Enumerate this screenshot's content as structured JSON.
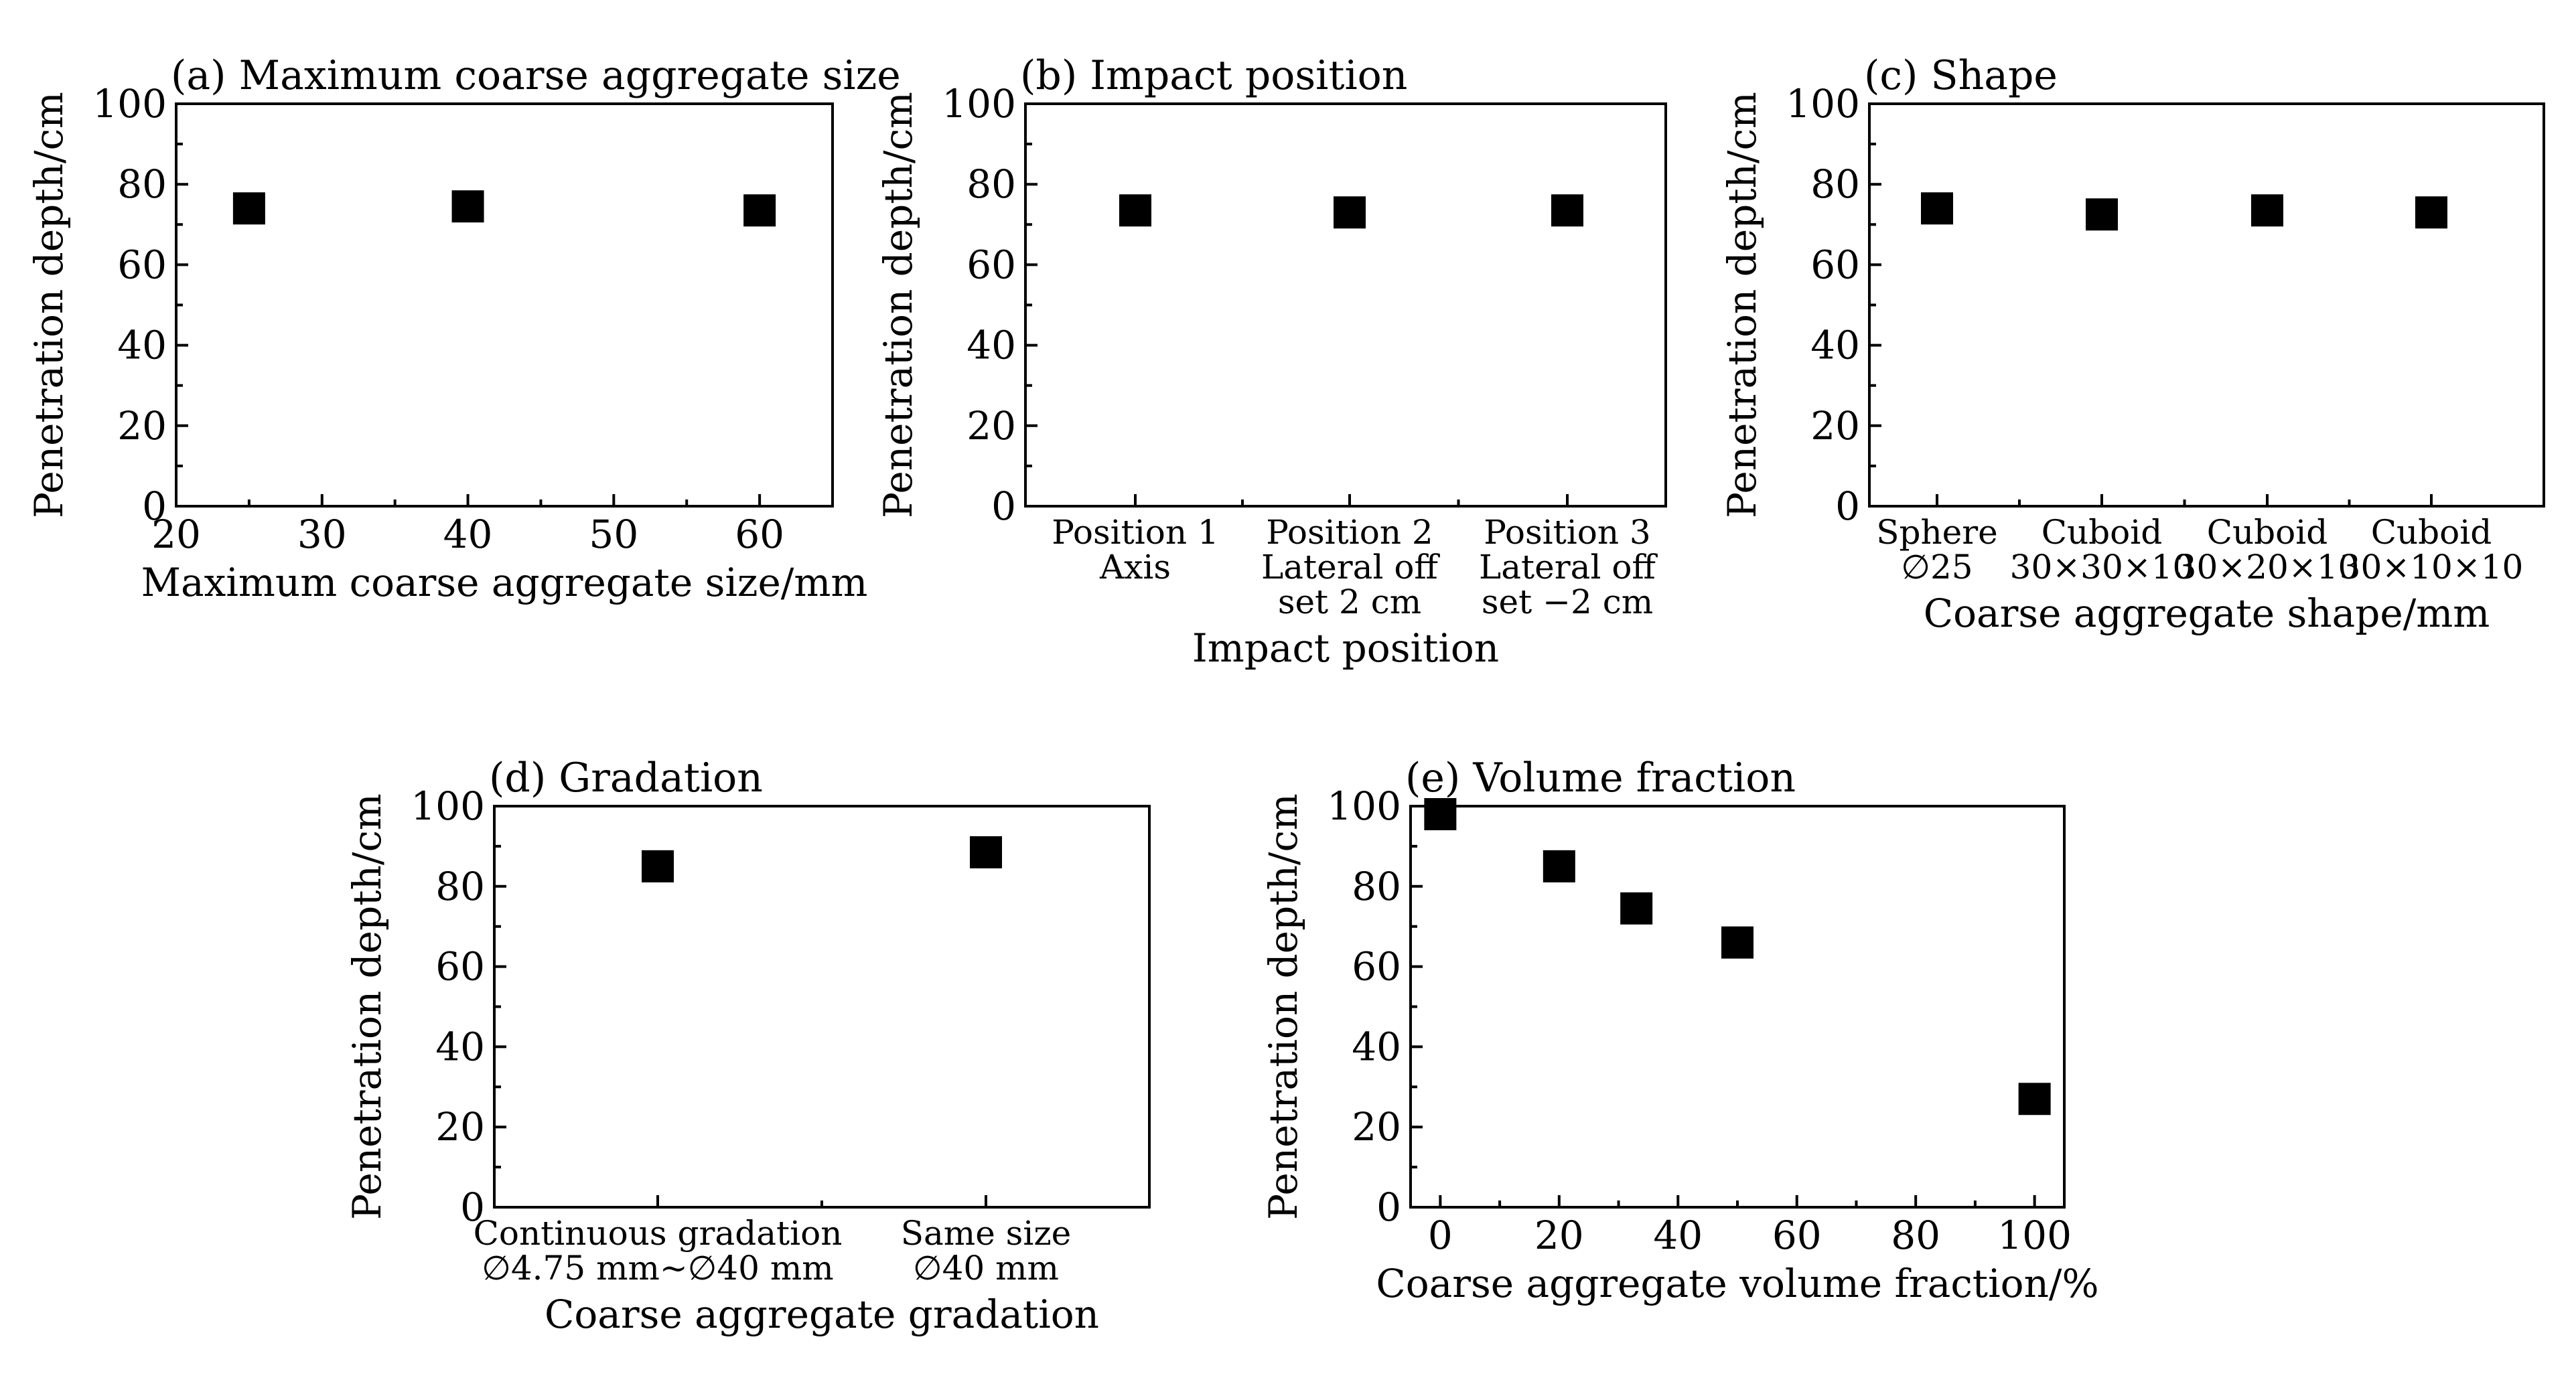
{
  "chart_data": [
    {
      "id": "a",
      "type": "scatter",
      "title": "(a) Maximum coarse aggregate size",
      "xlabel": "Maximum coarse aggregate size/mm",
      "ylabel": "Penetration depth/cm",
      "xlim": [
        20,
        65
      ],
      "ylim": [
        0,
        100
      ],
      "xticks": [
        20,
        30,
        40,
        50,
        60
      ],
      "yticks": [
        0,
        20,
        40,
        60,
        80,
        100
      ],
      "x": [
        25,
        40,
        60
      ],
      "y": [
        74,
        74.5,
        73.5
      ],
      "marker": "square",
      "color": "#000000",
      "grid": false
    },
    {
      "id": "b",
      "type": "scatter",
      "title": "(b) Impact position",
      "xlabel": "Impact position",
      "ylabel": "Penetration depth/cm",
      "ylim": [
        0,
        100
      ],
      "yticks": [
        0,
        20,
        40,
        60,
        80,
        100
      ],
      "categories": [
        [
          "Position 1",
          "Axis"
        ],
        [
          "Position 2",
          "Lateral off",
          "set 2 cm"
        ],
        [
          "Position 3",
          "Lateral off",
          "set −2 cm"
        ]
      ],
      "y": [
        73.5,
        73,
        73.5
      ],
      "marker": "square",
      "color": "#000000",
      "grid": false
    },
    {
      "id": "c",
      "type": "scatter",
      "title": "(c) Shape",
      "xlabel": "Coarse aggregate shape/mm",
      "ylabel": "Penetration depth/cm",
      "ylim": [
        0,
        100
      ],
      "yticks": [
        0,
        20,
        40,
        60,
        80,
        100
      ],
      "categories": [
        [
          "Sphere",
          "∅25"
        ],
        [
          "Cuboid",
          "30×30×10"
        ],
        [
          "Cuboid",
          "30×20×10"
        ],
        [
          "Cuboid",
          "30×10×10"
        ]
      ],
      "y": [
        74,
        72.5,
        73.5,
        73
      ],
      "marker": "square",
      "color": "#000000",
      "grid": false
    },
    {
      "id": "d",
      "type": "scatter",
      "title": "(d) Gradation",
      "xlabel": "Coarse aggregate gradation",
      "ylabel": "Penetration depth/cm",
      "ylim": [
        0,
        100
      ],
      "yticks": [
        0,
        20,
        40,
        60,
        80,
        100
      ],
      "categories": [
        [
          "Continuous gradation",
          "∅4.75 mm~∅40 mm"
        ],
        [
          "Same size",
          "∅40 mm"
        ]
      ],
      "y": [
        85,
        88.5
      ],
      "marker": "square",
      "color": "#000000",
      "grid": false
    },
    {
      "id": "e",
      "type": "scatter",
      "title": "(e) Volume fraction",
      "xlabel": "Coarse aggregate volume fraction/%",
      "ylabel": "Penetration depth/cm",
      "xlim": [
        -5,
        105
      ],
      "ylim": [
        0,
        100
      ],
      "xticks": [
        0,
        20,
        40,
        60,
        80,
        100
      ],
      "yticks": [
        0,
        20,
        40,
        60,
        80,
        100
      ],
      "x": [
        0,
        20,
        33,
        50,
        100
      ],
      "y": [
        98,
        85,
        74.5,
        66,
        27
      ],
      "marker": "square",
      "color": "#000000",
      "grid": false
    }
  ]
}
